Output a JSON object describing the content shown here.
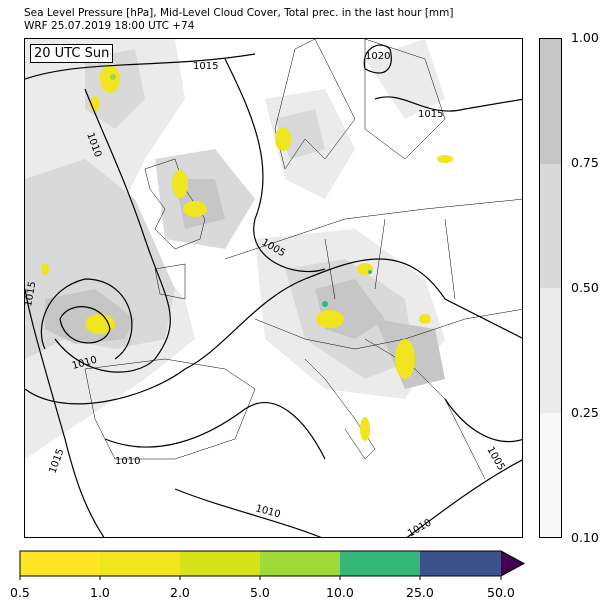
{
  "header": {
    "title_line1": "Sea Level Pressure [hPa], Mid-Level Cloud Cover, Total prec. in the last hour [mm]",
    "title_line2": "WRF 25.07.2019 18:00 UTC +74"
  },
  "map": {
    "valid_time_label": "20 UTC Sun",
    "isobar_labels": [
      "1015",
      "1020",
      "1015",
      "1010",
      "1005",
      "1015",
      "1010",
      "1015",
      "1010",
      "1010",
      "1010",
      "1005"
    ],
    "isobar_color": "#000000",
    "cloud_color": "#c8c8c8",
    "precip_color": "#f0e51f"
  },
  "cloud_colorbar": {
    "ticks": [
      "1.00",
      "0.75",
      "0.50",
      "0.25",
      "0.10"
    ],
    "levels": [
      {
        "range": "0.75-1.00",
        "color": "#c6c6c6"
      },
      {
        "range": "0.50-0.75",
        "color": "#d9d9d9"
      },
      {
        "range": "0.25-0.50",
        "color": "#ebebeb"
      },
      {
        "range": "0.10-0.25",
        "color": "#f8f8f8"
      }
    ]
  },
  "precip_colorbar": {
    "ticks": [
      "0.5",
      "1.0",
      "2.0",
      "5.0",
      "10.0",
      "25.0",
      "50.0"
    ],
    "colors": [
      "#fde725",
      "#f1e51d",
      "#d8e219",
      "#a0da39",
      "#35b779",
      "#3b528b",
      "#440154"
    ],
    "extend": "max"
  }
}
